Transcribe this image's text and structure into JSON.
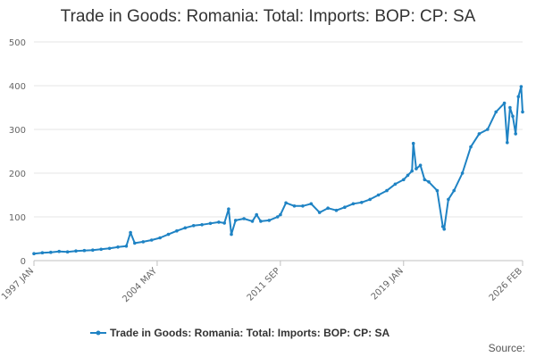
{
  "chart_data": {
    "type": "line",
    "title": "Trade in Goods: Romania: Total: Imports: BOP: CP: SA",
    "xlabel": "",
    "ylabel": "",
    "ylim": [
      0,
      500
    ],
    "yticks": [
      0,
      100,
      200,
      300,
      400,
      500
    ],
    "x_range": [
      "1997-01",
      "2026-02"
    ],
    "xtick_labels": [
      "1997 JAN",
      "2004 MAY",
      "2011 SEP",
      "2019 JAN",
      "2026 FEB"
    ],
    "xtick_dates": [
      "1997-01",
      "2004-05",
      "2011-09",
      "2019-01",
      "2026-02"
    ],
    "grid": "horizontal",
    "legend_position": "bottom",
    "color": "#1f83c4",
    "series": [
      {
        "name": "Trade in Goods: Romania: Total: Imports: BOP: CP: SA",
        "points": [
          [
            "1997-01",
            16
          ],
          [
            "1997-07",
            18
          ],
          [
            "1998-01",
            19
          ],
          [
            "1998-07",
            21
          ],
          [
            "1999-01",
            20
          ],
          [
            "1999-07",
            22
          ],
          [
            "2000-01",
            23
          ],
          [
            "2000-07",
            24
          ],
          [
            "2001-01",
            26
          ],
          [
            "2001-07",
            28
          ],
          [
            "2002-01",
            31
          ],
          [
            "2002-07",
            33
          ],
          [
            "2002-10",
            64
          ],
          [
            "2003-01",
            40
          ],
          [
            "2003-07",
            43
          ],
          [
            "2004-01",
            47
          ],
          [
            "2004-07",
            52
          ],
          [
            "2005-01",
            60
          ],
          [
            "2005-07",
            68
          ],
          [
            "2006-01",
            75
          ],
          [
            "2006-07",
            80
          ],
          [
            "2007-01",
            82
          ],
          [
            "2007-07",
            85
          ],
          [
            "2008-01",
            88
          ],
          [
            "2008-05",
            86
          ],
          [
            "2008-08",
            118
          ],
          [
            "2008-10",
            60
          ],
          [
            "2009-01",
            92
          ],
          [
            "2009-07",
            96
          ],
          [
            "2010-01",
            90
          ],
          [
            "2010-04",
            105
          ],
          [
            "2010-07",
            90
          ],
          [
            "2011-01",
            92
          ],
          [
            "2011-07",
            100
          ],
          [
            "2011-09",
            105
          ],
          [
            "2012-01",
            132
          ],
          [
            "2012-07",
            125
          ],
          [
            "2013-01",
            125
          ],
          [
            "2013-07",
            130
          ],
          [
            "2014-01",
            110
          ],
          [
            "2014-07",
            120
          ],
          [
            "2015-01",
            115
          ],
          [
            "2015-07",
            122
          ],
          [
            "2016-01",
            130
          ],
          [
            "2016-07",
            133
          ],
          [
            "2017-01",
            140
          ],
          [
            "2017-07",
            150
          ],
          [
            "2018-01",
            160
          ],
          [
            "2018-07",
            175
          ],
          [
            "2019-01",
            185
          ],
          [
            "2019-04",
            195
          ],
          [
            "2019-07",
            205
          ],
          [
            "2019-08",
            268
          ],
          [
            "2019-10",
            210
          ],
          [
            "2020-01",
            218
          ],
          [
            "2020-04",
            185
          ],
          [
            "2020-07",
            180
          ],
          [
            "2021-01",
            160
          ],
          [
            "2021-05",
            78
          ],
          [
            "2021-06",
            72
          ],
          [
            "2021-09",
            140
          ],
          [
            "2022-01",
            160
          ],
          [
            "2022-07",
            200
          ],
          [
            "2023-01",
            260
          ],
          [
            "2023-07",
            290
          ],
          [
            "2024-01",
            300
          ],
          [
            "2024-07",
            340
          ],
          [
            "2025-01",
            360
          ],
          [
            "2025-03",
            270
          ],
          [
            "2025-05",
            350
          ],
          [
            "2025-07",
            330
          ],
          [
            "2025-09",
            290
          ],
          [
            "2025-11",
            375
          ],
          [
            "2026-01",
            398
          ],
          [
            "2026-02",
            340
          ]
        ]
      }
    ]
  },
  "legend": {
    "label": "Trade in Goods: Romania: Total: Imports: BOP: CP: SA"
  },
  "source": {
    "label": "Source:"
  }
}
